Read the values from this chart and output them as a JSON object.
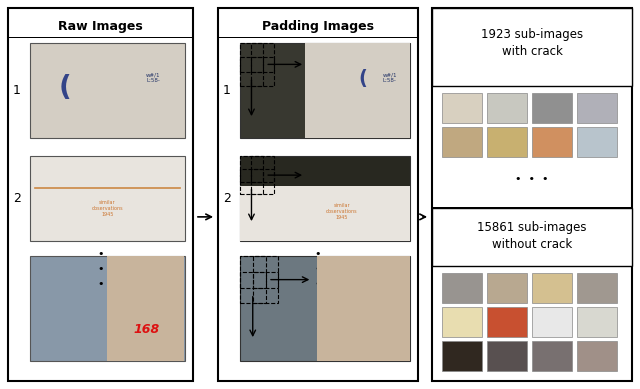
{
  "bg_color": "#ffffff",
  "col1_title": "Raw Images",
  "col2_title": "Padding Images",
  "col3_title_top": "1923 sub-images\nwith crack",
  "col3_title_bottom": "15861 sub-images\nwithout crack",
  "dots_vertical": "•\n•\n•",
  "dots_horizontal": "•  •  •",
  "img1_color": "#d4cec4",
  "img2_color": "#e8e4de",
  "img3_colors": [
    "#8898a8",
    "#c8b8a0",
    "#b8a090"
  ],
  "pad1_dark": "#383830",
  "pad2_dark": "#2c2c24",
  "pad3_dark": "#707880",
  "crack_sub_row1": [
    "#d8d0c0",
    "#c8c8c0",
    "#909090",
    "#b0b0b8"
  ],
  "crack_sub_row2": [
    "#c0a880",
    "#c8b070",
    "#d09060",
    "#b8c4cc"
  ],
  "nocrack_sub_row1": [
    "#989490",
    "#b8a890",
    "#d4c090",
    "#a09890"
  ],
  "nocrack_sub_row2": [
    "#e8ddb0",
    "#c85030",
    "#e8e8e8",
    "#d8d8d0"
  ],
  "nocrack_sub_row3": [
    "#302820",
    "#585050",
    "#787070",
    "#a09088"
  ]
}
